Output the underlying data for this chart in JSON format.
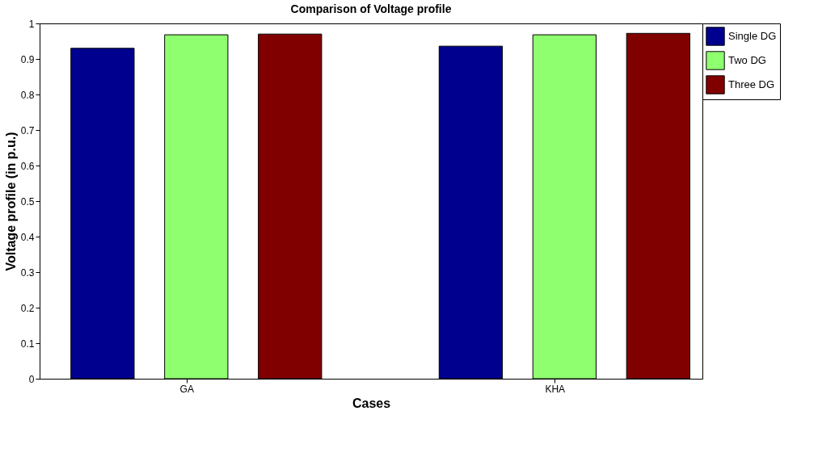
{
  "chart_data": {
    "type": "bar",
    "title": "Comparison of Voltage profile",
    "xlabel": "Cases",
    "ylabel": "Voltage profile (in p.u.)",
    "categories": [
      "GA",
      "KHA"
    ],
    "series": [
      {
        "name": "Single DG",
        "color": "#00008f",
        "values": [
          0.93,
          0.936
        ]
      },
      {
        "name": "Two DG",
        "color": "#8fff70",
        "values": [
          0.968,
          0.968
        ]
      },
      {
        "name": "Three DG",
        "color": "#800000",
        "values": [
          0.97,
          0.972
        ]
      }
    ],
    "ylim": [
      0,
      1
    ],
    "yticks": [
      0,
      0.1,
      0.2,
      0.3,
      0.4,
      0.5,
      0.6,
      0.7,
      0.8,
      0.9,
      1
    ],
    "grid": false,
    "legend": "top right"
  }
}
